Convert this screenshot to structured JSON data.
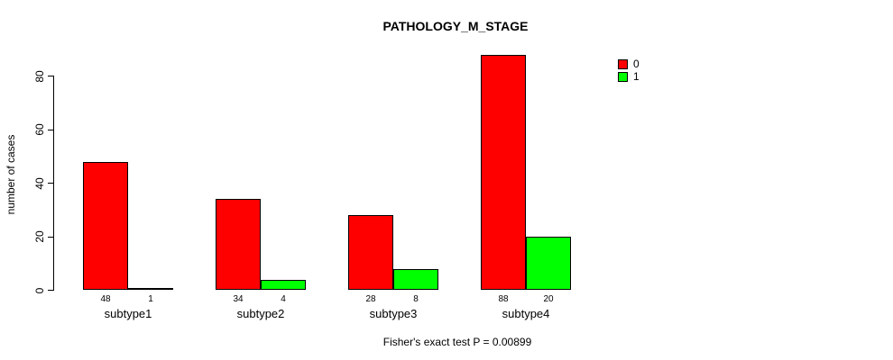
{
  "chart_data": {
    "type": "bar",
    "title": "PATHOLOGY_M_STAGE",
    "ylabel": "number of cases",
    "xlabel": "",
    "footer": "Fisher's exact test P = 0.00899",
    "categories": [
      "subtype1",
      "subtype2",
      "subtype3",
      "subtype4"
    ],
    "series": [
      {
        "name": "0",
        "color": "#FF0000",
        "values": [
          48,
          34,
          28,
          88
        ]
      },
      {
        "name": "1",
        "color": "#00FF00",
        "values": [
          1,
          4,
          8,
          20
        ]
      }
    ],
    "bar_value_labels": [
      [
        48,
        1
      ],
      [
        34,
        4
      ],
      [
        28,
        8
      ],
      [
        88,
        20
      ]
    ],
    "yticks": [
      0,
      20,
      40,
      60,
      80
    ],
    "ylim": [
      0,
      88
    ],
    "grid": false,
    "legend_position": "top-right-outside"
  },
  "colors": {
    "background": "#FFFFFF",
    "axis": "#000000",
    "text": "#000000",
    "series_0": "#FF0000",
    "series_1": "#00FF00"
  }
}
